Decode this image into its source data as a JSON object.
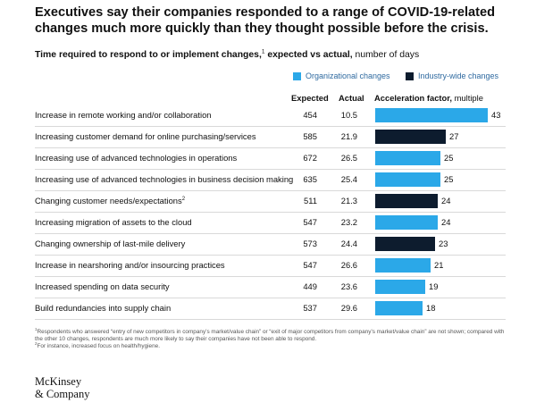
{
  "title": "Executives say their companies responded to a range of COVID-19-related changes much more quickly than they thought possible before the crisis.",
  "subtitle": {
    "bold": "Time required to respond to or implement changes,",
    "footnote_mark": "1",
    "bold2": " expected vs actual,",
    "normal": " number of days"
  },
  "legend": {
    "organizational": "Organizational changes",
    "industry": "Industry-wide changes"
  },
  "column_headers": {
    "expected": "Expected",
    "actual": "Actual",
    "acceleration_bold": "Acceleration factor,",
    "acceleration_normal": " multiple"
  },
  "colors": {
    "organizational": "#2ba8e8",
    "industry": "#0d1c2e"
  },
  "chart_data": {
    "type": "bar",
    "orientation": "horizontal",
    "title": "Executives say their companies responded to a range of COVID-19-related changes much more quickly than they thought possible before the crisis.",
    "categories": [
      "Increase in remote working and/or collaboration",
      "Increasing customer demand for online purchasing/services",
      "Increasing use of advanced technologies in operations",
      "Increasing use of advanced technologies in business decision making",
      "Changing customer needs/expectations",
      "Increasing migration of assets to the cloud",
      "Changing ownership of last-mile delivery",
      "Increase in nearshoring and/or insourcing practices",
      "Increased spending on data security",
      "Build redundancies into supply chain"
    ],
    "label_footnotes": [
      "",
      "",
      "",
      "",
      "2",
      "",
      "",
      "",
      "",
      ""
    ],
    "expected": [
      "454",
      "585",
      "672",
      "635",
      "511",
      "547",
      "573",
      "547",
      "449",
      "537"
    ],
    "actual": [
      "10.5",
      "21.9",
      "26.5",
      "25.4",
      "21.3",
      "23.2",
      "24.4",
      "26.6",
      "23.6",
      "29.6"
    ],
    "acceleration_factor": [
      43,
      27,
      25,
      25,
      24,
      24,
      23,
      21,
      19,
      18
    ],
    "change_type": [
      "Organizational changes",
      "Industry-wide changes",
      "Organizational changes",
      "Organizational changes",
      "Industry-wide changes",
      "Organizational changes",
      "Industry-wide changes",
      "Organizational changes",
      "Organizational changes",
      "Organizational changes"
    ],
    "xlim": [
      0,
      43
    ]
  },
  "footnotes": {
    "note1_mark": "1",
    "note1": "Respondents who answered “entry of new competitors in company’s market/value chain” or “exit of major competitors from company’s market/value chain” are not shown; compared with the other 10 changes, respondents are much more likely to say their companies have not been able to respond.",
    "note2_mark": "2",
    "note2": "For instance, increased focus on health/hygiene."
  },
  "logo": {
    "line1": "McKinsey",
    "line2": "& Company"
  }
}
